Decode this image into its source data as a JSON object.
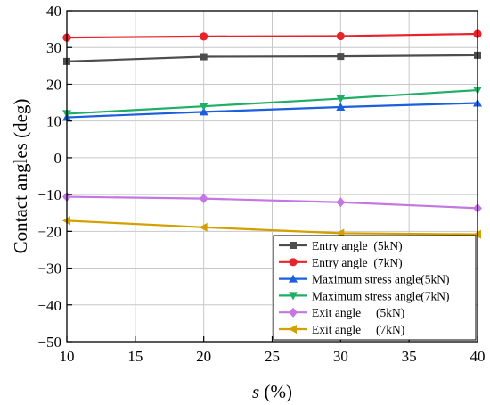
{
  "chart_data": {
    "type": "line",
    "x": [
      10,
      20,
      30,
      40
    ],
    "xlabel_var": "s",
    "xlabel_unit": " (%)",
    "ylabel": "Contact angles (deg)",
    "xlim": [
      10,
      40
    ],
    "ylim": [
      -50,
      40
    ],
    "xticks": [
      "10",
      "15",
      "20",
      "25",
      "30",
      "35",
      "40"
    ],
    "yticks": [
      "40",
      "30",
      "20",
      "10",
      "0",
      "−10",
      "−20",
      "−30",
      "−40",
      "−50"
    ],
    "grid": true,
    "legend_position": "bottom-right",
    "series": [
      {
        "name": "Entry angle  (5kN)",
        "values": [
          26.2,
          27.5,
          27.6,
          27.9
        ],
        "color": "#4d4d4d",
        "marker": "square"
      },
      {
        "name": "Entry angle  (7kN)",
        "values": [
          32.7,
          33.0,
          33.1,
          33.7
        ],
        "color": "#e8232c",
        "marker": "circle"
      },
      {
        "name": "Maximum stress angle(5kN)",
        "values": [
          11.0,
          12.5,
          13.8,
          14.9
        ],
        "color": "#1a5fdd",
        "marker": "triangle-up"
      },
      {
        "name": "Maximum stress angle(7kN)",
        "values": [
          12.0,
          14.0,
          16.1,
          18.4
        ],
        "color": "#1fae66",
        "marker": "triangle-down"
      },
      {
        "name": "Exit angle     (5kN)",
        "values": [
          -10.6,
          -11.1,
          -12.1,
          -13.7
        ],
        "color": "#c477e3",
        "marker": "diamond"
      },
      {
        "name": "Exit angle     (7kN)",
        "values": [
          -17.1,
          -18.9,
          -20.5,
          -20.8
        ],
        "color": "#d4a000",
        "marker": "triangle-left"
      }
    ]
  }
}
